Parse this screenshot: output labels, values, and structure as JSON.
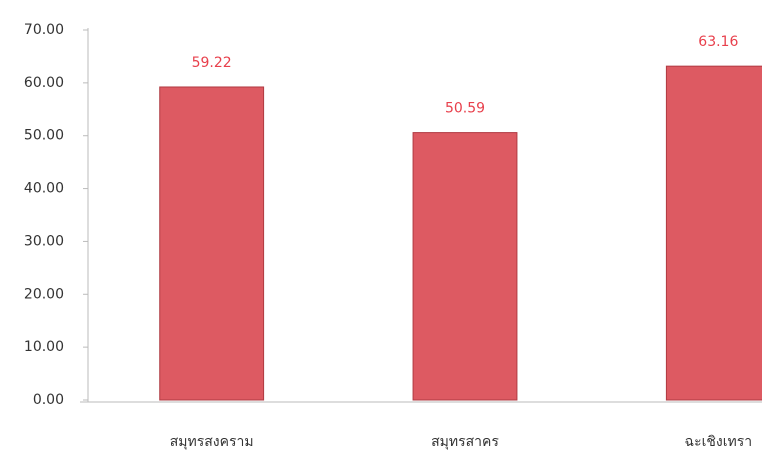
{
  "chart_data": {
    "type": "bar",
    "categories": [
      "สมุทรสงคราม",
      "สมุทรสาคร",
      "ฉะเชิงเทรา"
    ],
    "values": [
      59.22,
      50.59,
      63.16
    ],
    "color": "#dd5a62",
    "label_color": "#e8404c",
    "ylim": [
      0,
      70
    ],
    "yticks": [
      {
        "value": 0,
        "label": "0.00"
      },
      {
        "value": 10,
        "label": "10.00"
      },
      {
        "value": 20,
        "label": "20.00"
      },
      {
        "value": 30,
        "label": "30.00"
      },
      {
        "value": 40,
        "label": "40.00"
      },
      {
        "value": 50,
        "label": "50.00"
      },
      {
        "value": 60,
        "label": "60.00"
      },
      {
        "value": 70,
        "label": "70.00"
      }
    ],
    "grid": false
  }
}
